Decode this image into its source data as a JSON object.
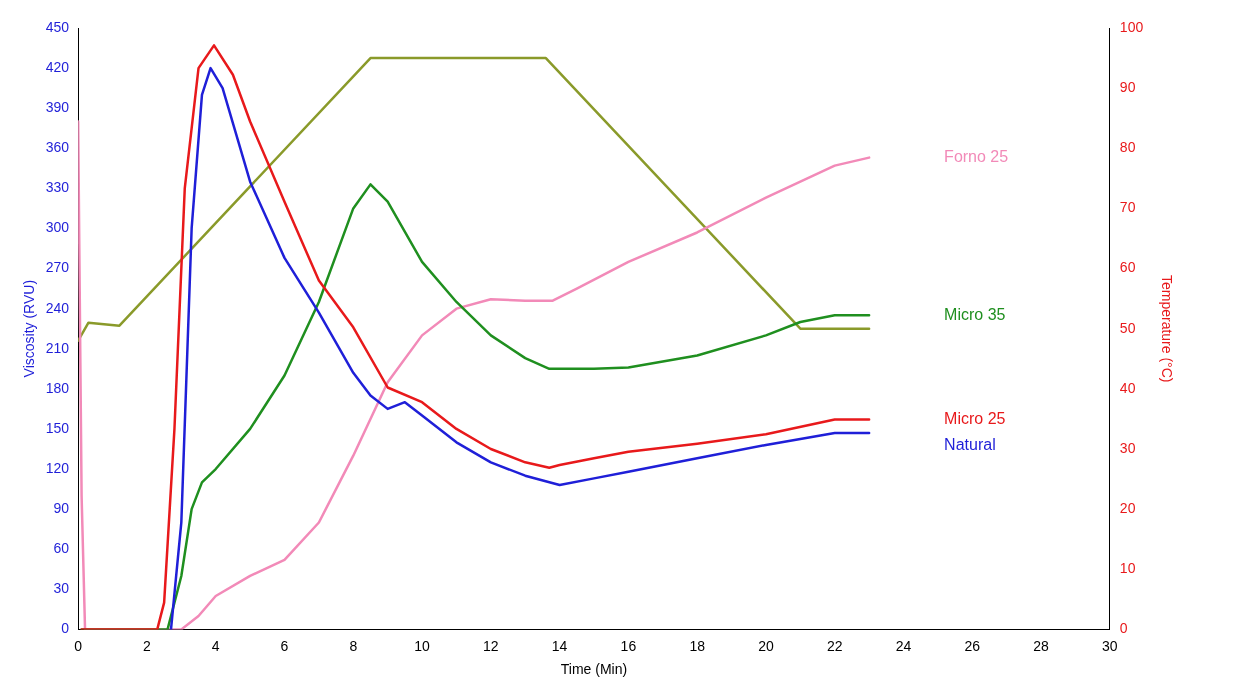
{
  "chart_data": {
    "type": "line",
    "xlabel": "Time (Min)",
    "ylabel": "Viscosity (RVU)",
    "y2label": "Temperature (°C)",
    "xlim": [
      0,
      30
    ],
    "xticks": [
      0,
      2,
      4,
      6,
      8,
      10,
      12,
      14,
      16,
      18,
      20,
      22,
      24,
      26,
      28,
      30
    ],
    "ylim": [
      0,
      450
    ],
    "yticks": [
      0,
      30,
      60,
      90,
      120,
      150,
      180,
      210,
      240,
      270,
      300,
      330,
      360,
      390,
      420,
      450
    ],
    "y2lim": [
      0,
      100
    ],
    "y2ticks": [
      0,
      10,
      20,
      30,
      40,
      50,
      60,
      70,
      80,
      90,
      100
    ],
    "grid": false,
    "legend": false,
    "marker": "none",
    "line_style": "solid",
    "series": [
      {
        "name": "Natural",
        "color": "#1f1fd8",
        "x": [
          2.7,
          3.0,
          3.3,
          3.6,
          3.85,
          4.2,
          5,
          6,
          7,
          8,
          8.5,
          9,
          9.5,
          10,
          11,
          12,
          13,
          14,
          15,
          16,
          18,
          20,
          22,
          23
        ],
        "values": [
          0,
          80,
          300,
          400,
          420,
          405,
          335,
          278,
          237,
          192,
          175,
          165,
          170,
          160,
          140,
          125,
          115,
          108,
          113,
          118,
          128,
          138,
          147,
          147
        ]
      },
      {
        "name": "Micro 25",
        "color": "#e8191b",
        "x": [
          0.1,
          2.3,
          2.5,
          2.8,
          3.1,
          3.5,
          3.95,
          4.5,
          5,
          6,
          7,
          8,
          9,
          10,
          11,
          12,
          13,
          13.7,
          14,
          15,
          16,
          17,
          18,
          20,
          22,
          23
        ],
        "values": [
          0,
          0,
          20,
          150,
          330,
          420,
          437,
          415,
          380,
          320,
          261,
          226,
          181,
          170,
          150,
          135,
          125,
          121,
          123,
          128,
          133,
          136,
          139,
          146,
          157,
          157
        ]
      },
      {
        "name": "Micro 35",
        "color": "#1f8f1f",
        "x": [
          0.1,
          2.6,
          3.0,
          3.3,
          3.6,
          4,
          5,
          6,
          7,
          8,
          8.5,
          9,
          10,
          11,
          12,
          13,
          13.7,
          15,
          16,
          18,
          20,
          21,
          22,
          23
        ],
        "values": [
          0,
          0,
          40,
          90,
          110,
          120,
          150,
          190,
          245,
          315,
          333,
          320,
          275,
          245,
          220,
          203,
          195,
          195,
          196,
          205,
          220,
          230,
          235,
          235
        ]
      },
      {
        "name": "Forno 25",
        "color": "#f28ab8",
        "x": [
          0,
          0.1,
          0.2,
          3,
          3.5,
          4,
          5,
          6,
          7,
          8,
          9,
          10,
          11,
          12,
          13,
          13.8,
          14.5,
          16,
          18,
          20,
          22,
          23
        ],
        "values": [
          380,
          100,
          0,
          0,
          10,
          25,
          40,
          52,
          80,
          130,
          185,
          220,
          240,
          247,
          246,
          246,
          255,
          275,
          297,
          323,
          347,
          353
        ]
      },
      {
        "color": "#8a9a2a",
        "axis": "y2",
        "x": [
          0,
          0.3,
          1.2,
          8.5,
          13.6,
          21,
          23
        ],
        "values": [
          48,
          51,
          50.5,
          95,
          95,
          50,
          50
        ]
      }
    ]
  }
}
